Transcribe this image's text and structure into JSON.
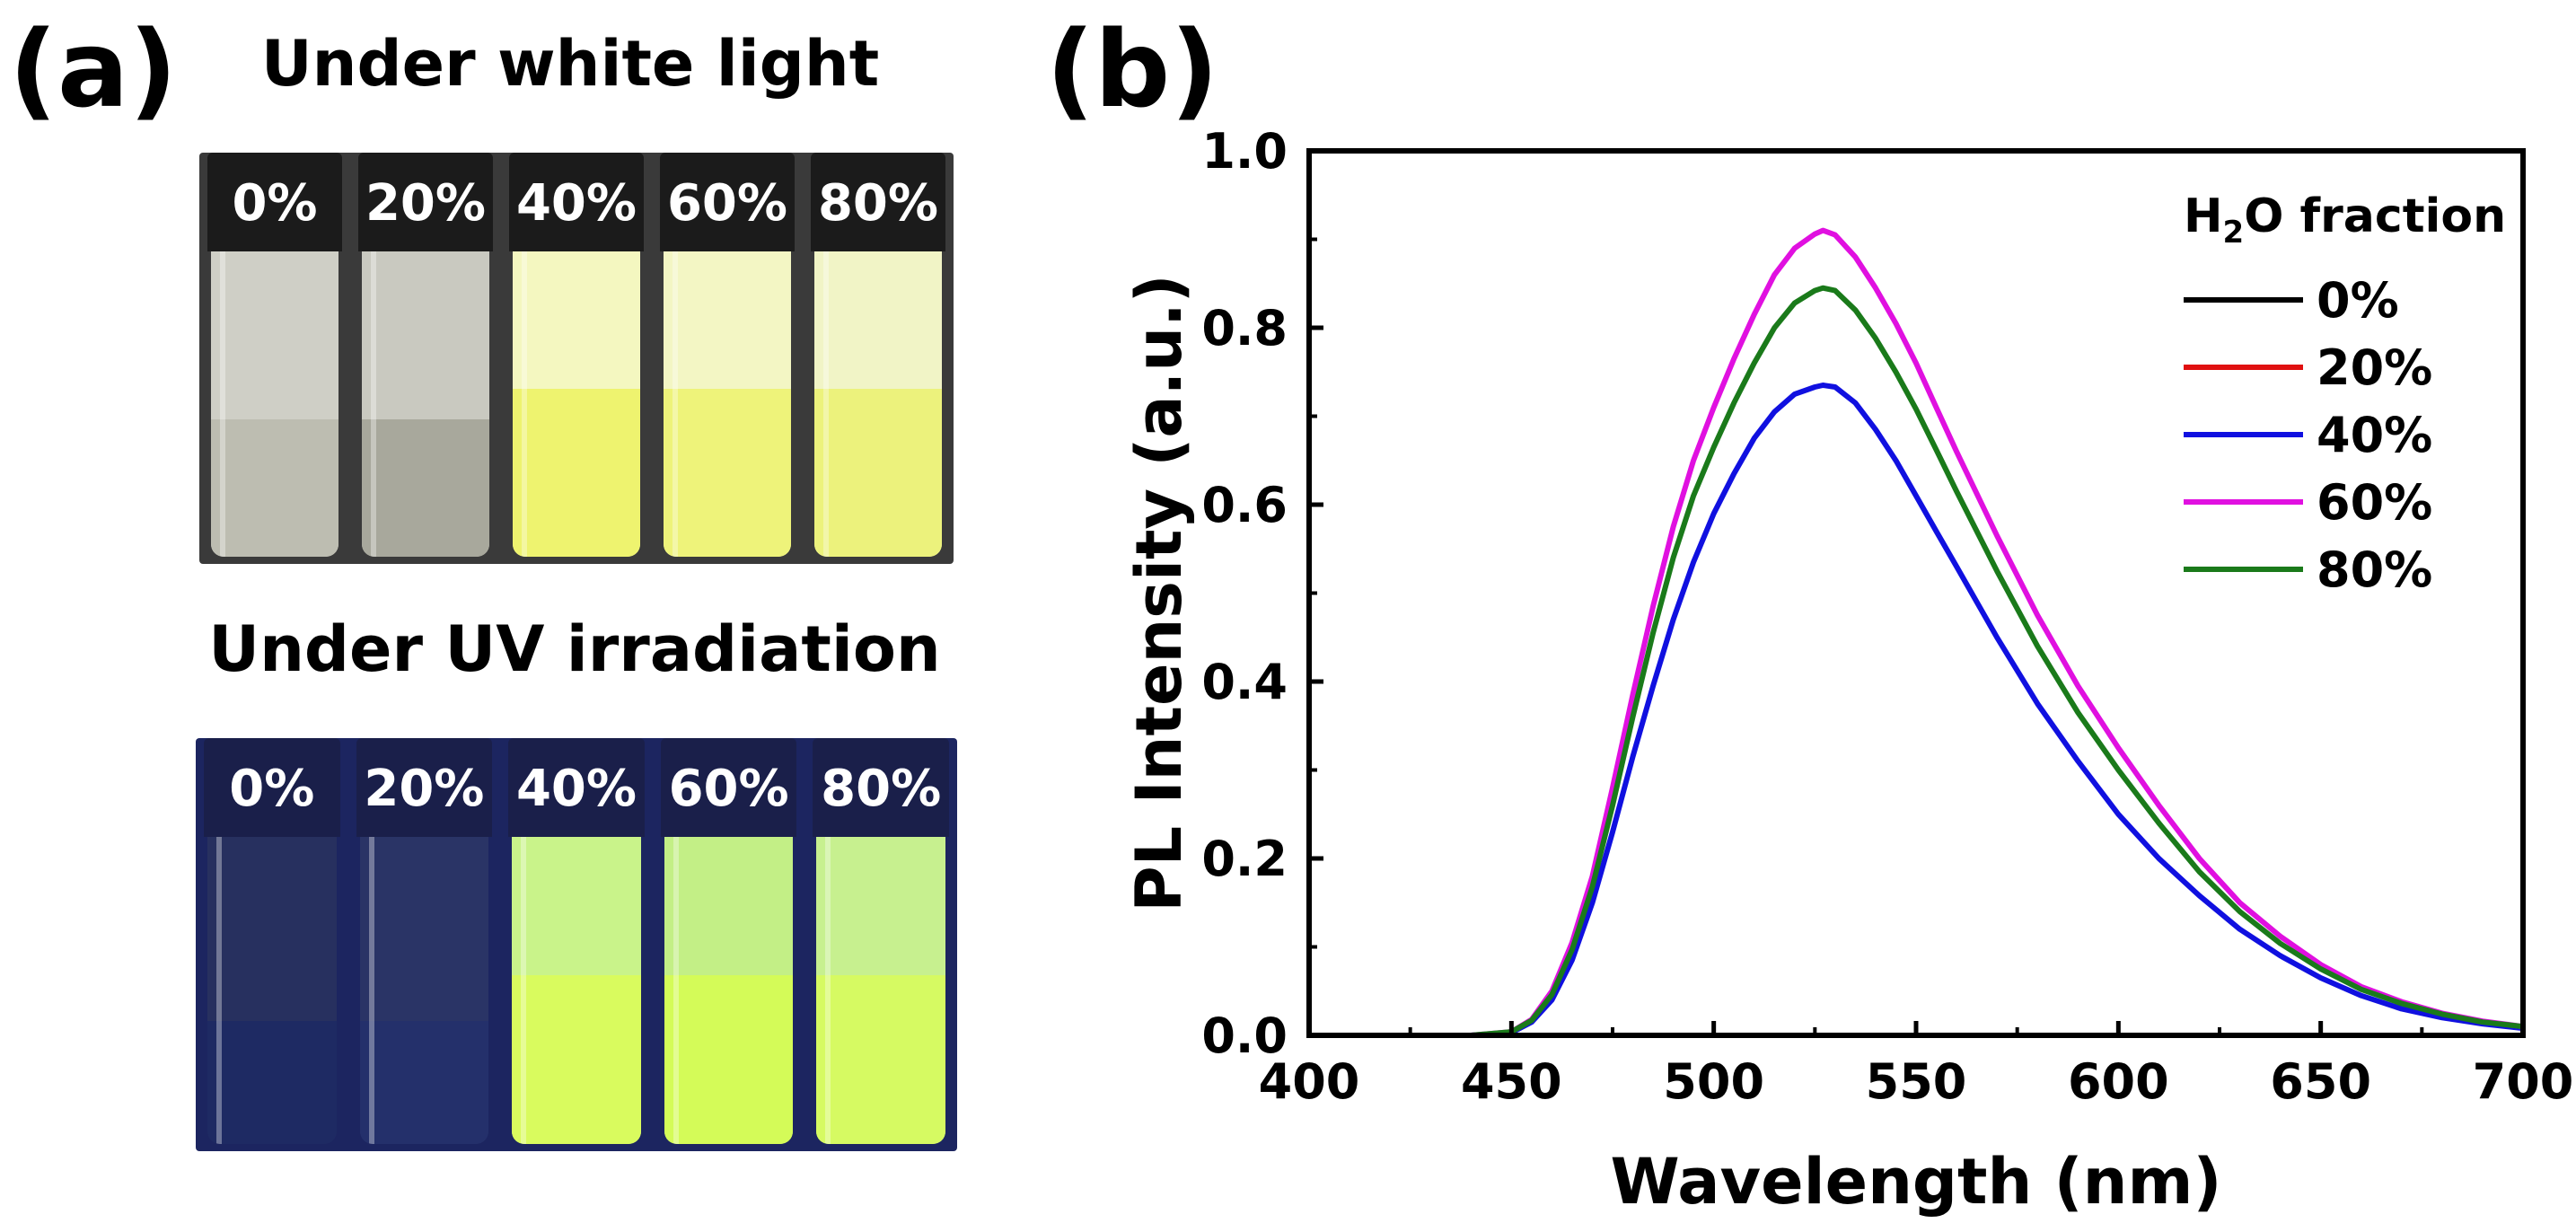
{
  "panel_a": {
    "label": "(a)",
    "white_light": {
      "title": "Under white light",
      "vials": [
        {
          "label": "0%",
          "glass": "#cfcfc6",
          "liquid": "#bdbdb1",
          "liquid_fraction": 0.45
        },
        {
          "label": "20%",
          "glass": "#c9c9c0",
          "liquid": "#a8a89c",
          "liquid_fraction": 0.45
        },
        {
          "label": "40%",
          "glass": "#f4f7c0",
          "liquid": "#eef36f",
          "liquid_fraction": 0.55
        },
        {
          "label": "60%",
          "glass": "#f3f6c4",
          "liquid": "#eef37a",
          "liquid_fraction": 0.55
        },
        {
          "label": "80%",
          "glass": "#f1f4c6",
          "liquid": "#ecf27c",
          "liquid_fraction": 0.55
        }
      ]
    },
    "uv": {
      "title": "Under UV irradiation",
      "vials": [
        {
          "label": "0%",
          "glass": "#27305f",
          "liquid": "#1e2a63",
          "liquid_fraction": 0.4
        },
        {
          "label": "20%",
          "glass": "#2a3466",
          "liquid": "#24306b",
          "liquid_fraction": 0.4
        },
        {
          "label": "40%",
          "glass": "#c9f38a",
          "liquid": "#d9fb5e",
          "liquid_fraction": 0.55
        },
        {
          "label": "60%",
          "glass": "#c3ef86",
          "liquid": "#d4fb58",
          "liquid_fraction": 0.55
        },
        {
          "label": "80%",
          "glass": "#c7f08f",
          "liquid": "#d6fa62",
          "liquid_fraction": 0.55
        }
      ]
    }
  },
  "panel_b": {
    "label": "(b)"
  },
  "chart_data": {
    "type": "line",
    "title": "",
    "xlabel": "Wavelength (nm)",
    "ylabel": "PL Intensity (a.u.)",
    "xlim": [
      400,
      700
    ],
    "ylim": [
      0.0,
      1.0
    ],
    "xticks": [
      400,
      450,
      500,
      550,
      600,
      650,
      700
    ],
    "xtick_labels": [
      "400",
      "450",
      "500",
      "550",
      "600",
      "650",
      "700"
    ],
    "yticks": [
      0.0,
      0.2,
      0.4,
      0.6,
      0.8,
      1.0
    ],
    "ytick_labels": [
      "0.0",
      "0.2",
      "0.4",
      "0.6",
      "0.8",
      "1.0"
    ],
    "legend": {
      "title_main": "H",
      "title_sub": "2",
      "title_rest": "O fraction",
      "placement": "top-right"
    },
    "x": [
      400,
      440,
      450,
      455,
      460,
      465,
      470,
      475,
      480,
      485,
      490,
      495,
      500,
      505,
      510,
      515,
      520,
      525,
      527,
      530,
      535,
      540,
      545,
      550,
      555,
      560,
      570,
      580,
      590,
      600,
      610,
      620,
      630,
      640,
      650,
      660,
      670,
      680,
      690,
      700
    ],
    "series": [
      {
        "name": "0%",
        "color": "#000000",
        "peak": 0.0,
        "values": [
          0,
          0,
          0,
          0,
          0,
          0,
          0,
          0,
          0,
          0,
          0,
          0,
          0,
          0,
          0,
          0,
          0,
          0,
          0,
          0,
          0,
          0,
          0,
          0,
          0,
          0,
          0,
          0,
          0,
          0,
          0,
          0,
          0,
          0,
          0,
          0,
          0,
          0,
          0,
          0
        ]
      },
      {
        "name": "20%",
        "color": "#e01010",
        "peak": 0.0,
        "values": [
          0,
          0,
          0,
          0,
          0,
          0,
          0,
          0,
          0,
          0,
          0,
          0,
          0,
          0,
          0,
          0,
          0,
          0,
          0,
          0,
          0,
          0,
          0,
          0,
          0,
          0,
          0,
          0,
          0,
          0,
          0,
          0,
          0,
          0,
          0,
          0,
          0,
          0,
          0,
          0
        ]
      },
      {
        "name": "40%",
        "color": "#1010e0",
        "peak": 0.735,
        "values": [
          0,
          0,
          0.003,
          0.015,
          0.04,
          0.085,
          0.15,
          0.23,
          0.315,
          0.395,
          0.47,
          0.535,
          0.59,
          0.635,
          0.675,
          0.705,
          0.725,
          0.733,
          0.735,
          0.733,
          0.715,
          0.685,
          0.65,
          0.61,
          0.57,
          0.53,
          0.45,
          0.375,
          0.31,
          0.25,
          0.2,
          0.158,
          0.12,
          0.09,
          0.065,
          0.045,
          0.03,
          0.02,
          0.013,
          0.008
        ]
      },
      {
        "name": "60%",
        "color": "#e010e0",
        "peak": 0.91,
        "values": [
          0,
          0,
          0.004,
          0.018,
          0.05,
          0.105,
          0.18,
          0.28,
          0.385,
          0.485,
          0.575,
          0.65,
          0.71,
          0.765,
          0.815,
          0.86,
          0.89,
          0.906,
          0.91,
          0.905,
          0.88,
          0.845,
          0.805,
          0.76,
          0.71,
          0.66,
          0.565,
          0.475,
          0.395,
          0.325,
          0.26,
          0.2,
          0.15,
          0.112,
          0.08,
          0.055,
          0.038,
          0.025,
          0.016,
          0.01
        ]
      },
      {
        "name": "80%",
        "color": "#1a7a1a",
        "peak": 0.845,
        "values": [
          0,
          0,
          0.004,
          0.017,
          0.046,
          0.097,
          0.168,
          0.26,
          0.36,
          0.455,
          0.54,
          0.61,
          0.665,
          0.715,
          0.76,
          0.8,
          0.828,
          0.842,
          0.845,
          0.842,
          0.82,
          0.788,
          0.75,
          0.708,
          0.662,
          0.615,
          0.525,
          0.44,
          0.365,
          0.3,
          0.24,
          0.185,
          0.14,
          0.104,
          0.075,
          0.052,
          0.036,
          0.024,
          0.015,
          0.01
        ]
      }
    ]
  }
}
